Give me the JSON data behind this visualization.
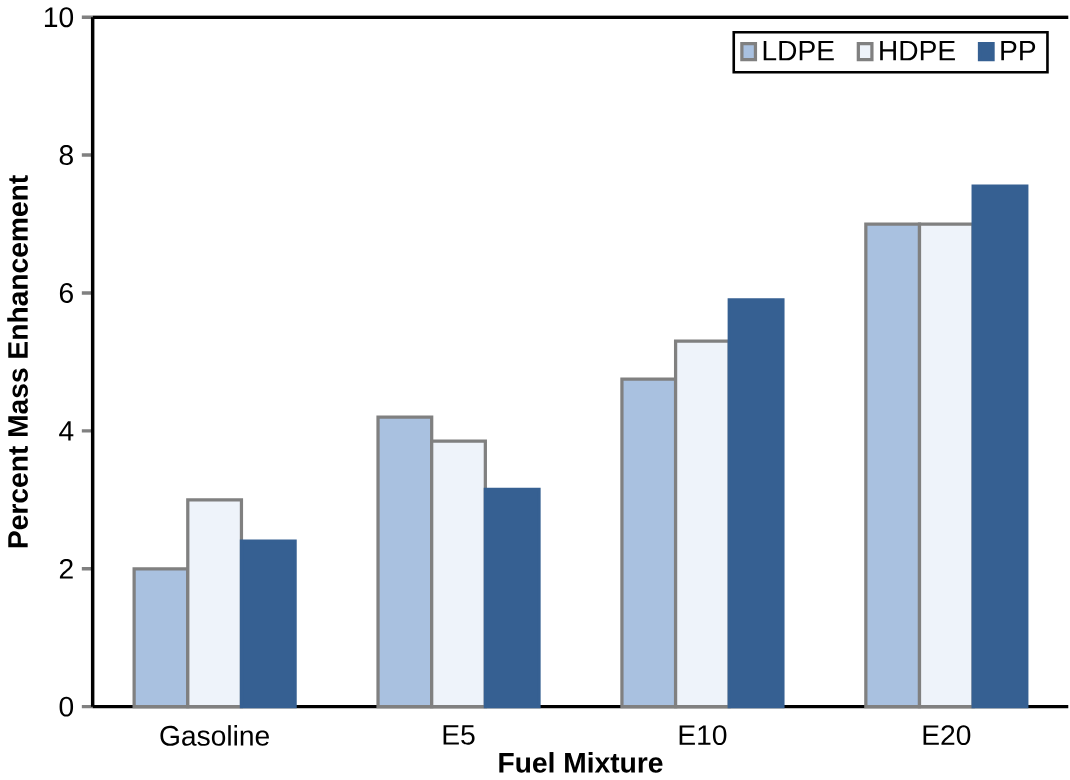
{
  "chart_data": {
    "type": "bar",
    "xlabel": "Fuel Mixture",
    "ylabel": "Percent Mass Enhancement",
    "categories": [
      "Gasoline",
      "E5",
      "E10",
      "E20"
    ],
    "series": [
      {
        "name": "LDPE",
        "color": "#a9c1e0",
        "values": [
          2.0,
          4.2,
          4.75,
          7.0
        ]
      },
      {
        "name": "HDPE",
        "color": "#eef3fa",
        "values": [
          3.0,
          3.85,
          5.3,
          7.0
        ]
      },
      {
        "name": "PP",
        "color": "#366092",
        "values": [
          2.4,
          3.15,
          5.9,
          7.55
        ]
      }
    ],
    "ylim": [
      0,
      10
    ],
    "yticks": [
      0,
      2,
      4,
      6,
      8,
      10
    ],
    "grid": false,
    "legend": "top right"
  }
}
